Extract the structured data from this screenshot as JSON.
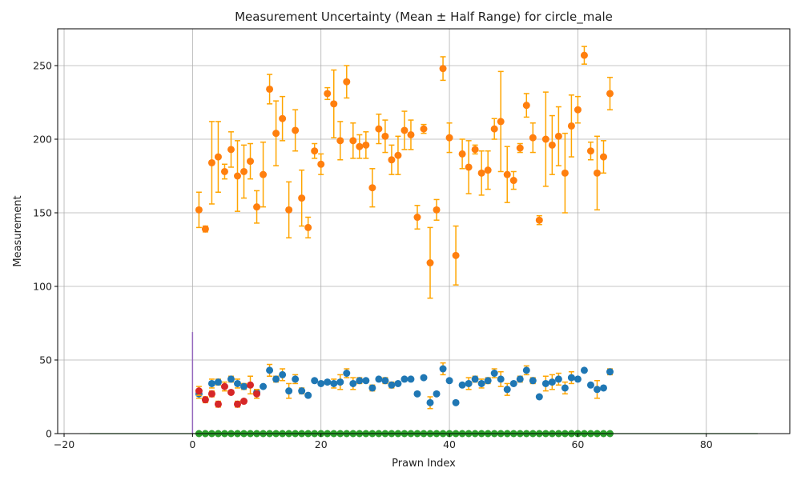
{
  "chart_data": {
    "type": "scatter",
    "title": "Measurement Uncertainty (Mean ± Half Range) for circle_male",
    "xlabel": "Prawn Index",
    "ylabel": "Measurement",
    "xlim": [
      -21,
      93
    ],
    "ylim": [
      0,
      275
    ],
    "xticks": [
      -20,
      0,
      20,
      40,
      60,
      80
    ],
    "yticks": [
      0,
      50,
      100,
      150,
      200,
      250
    ],
    "grid": true,
    "colors": {
      "upper": "#ff7f0e",
      "middle": "#1f77b4",
      "red": "#d62728",
      "bottom": "#2ca02c",
      "error_bar": "#ffa500",
      "vertical": "#9467bd"
    },
    "vertical_line": {
      "x": 0,
      "y_start": 0,
      "y_end": 69
    },
    "flat_lines": [
      {
        "x_start": -16,
        "x_end": 88,
        "y": 0
      }
    ],
    "series": [
      {
        "role": "upper",
        "points": [
          [
            1,
            152,
            12
          ],
          [
            2,
            139,
            2
          ],
          [
            3,
            184,
            28
          ],
          [
            4,
            188,
            24
          ],
          [
            5,
            178,
            5
          ],
          [
            6,
            193,
            12
          ],
          [
            7,
            175,
            24
          ],
          [
            8,
            178,
            18
          ],
          [
            9,
            185,
            12
          ],
          [
            10,
            154,
            11
          ],
          [
            11,
            176,
            22
          ],
          [
            12,
            234,
            10
          ],
          [
            13,
            204,
            22
          ],
          [
            14,
            214,
            15
          ],
          [
            15,
            152,
            19
          ],
          [
            16,
            206,
            14
          ],
          [
            17,
            160,
            19
          ],
          [
            18,
            140,
            7
          ],
          [
            19,
            192,
            5
          ],
          [
            20,
            183,
            7
          ],
          [
            21,
            231,
            4
          ],
          [
            22,
            224,
            23
          ],
          [
            23,
            199,
            13
          ],
          [
            24,
            239,
            11
          ],
          [
            25,
            199,
            12
          ],
          [
            26,
            195,
            8
          ],
          [
            27,
            196,
            9
          ],
          [
            28,
            167,
            13
          ],
          [
            29,
            207,
            10
          ],
          [
            30,
            202,
            11
          ],
          [
            31,
            186,
            10
          ],
          [
            32,
            189,
            13
          ],
          [
            33,
            206,
            13
          ],
          [
            34,
            203,
            10
          ],
          [
            35,
            147,
            8
          ],
          [
            36,
            207,
            3
          ],
          [
            37,
            116,
            24
          ],
          [
            38,
            152,
            7
          ],
          [
            39,
            248,
            8
          ],
          [
            40,
            201,
            10
          ],
          [
            41,
            121,
            20
          ],
          [
            42,
            190,
            10
          ],
          [
            43,
            181,
            18
          ],
          [
            44,
            193,
            3
          ],
          [
            45,
            177,
            15
          ],
          [
            46,
            179,
            13
          ],
          [
            47,
            207,
            7
          ],
          [
            48,
            212,
            34
          ],
          [
            49,
            176,
            19
          ],
          [
            50,
            172,
            6
          ],
          [
            51,
            194,
            3
          ],
          [
            52,
            223,
            8
          ],
          [
            53,
            201,
            10
          ],
          [
            54,
            145,
            3
          ],
          [
            55,
            200,
            32
          ],
          [
            56,
            196,
            20
          ],
          [
            57,
            202,
            20
          ],
          [
            58,
            177,
            27
          ],
          [
            59,
            209,
            21
          ],
          [
            60,
            220,
            9
          ],
          [
            61,
            257,
            6
          ],
          [
            62,
            192,
            6
          ],
          [
            63,
            177,
            25
          ],
          [
            64,
            188,
            11
          ],
          [
            65,
            231,
            11
          ]
        ]
      },
      {
        "role": "middle",
        "points": [
          [
            1,
            27,
            3
          ],
          [
            3,
            34,
            3
          ],
          [
            4,
            35,
            2
          ],
          [
            6,
            37,
            2
          ],
          [
            7,
            34,
            3
          ],
          [
            8,
            32,
            2
          ],
          [
            10,
            28,
            2
          ],
          [
            11,
            32,
            1
          ],
          [
            12,
            43,
            4
          ],
          [
            13,
            37,
            2
          ],
          [
            14,
            40,
            4
          ],
          [
            15,
            29,
            5
          ],
          [
            16,
            37,
            3
          ],
          [
            17,
            29,
            2
          ],
          [
            18,
            26,
            1
          ],
          [
            19,
            36,
            1
          ],
          [
            20,
            34,
            1
          ],
          [
            21,
            35,
            1
          ],
          [
            22,
            34,
            3
          ],
          [
            23,
            35,
            5
          ],
          [
            24,
            41,
            3
          ],
          [
            25,
            34,
            4
          ],
          [
            26,
            36,
            2
          ],
          [
            27,
            36,
            1
          ],
          [
            28,
            31,
            2
          ],
          [
            29,
            37,
            1
          ],
          [
            30,
            36,
            2
          ],
          [
            31,
            33,
            2
          ],
          [
            32,
            34,
            1
          ],
          [
            33,
            37,
            1
          ],
          [
            34,
            37,
            1
          ],
          [
            35,
            27,
            1
          ],
          [
            36,
            38,
            1
          ],
          [
            37,
            21,
            4
          ],
          [
            38,
            27,
            1
          ],
          [
            39,
            44,
            4
          ],
          [
            40,
            36,
            1
          ],
          [
            41,
            21,
            1
          ],
          [
            42,
            33,
            1
          ],
          [
            43,
            34,
            4
          ],
          [
            44,
            37,
            2
          ],
          [
            45,
            34,
            3
          ],
          [
            46,
            36,
            2
          ],
          [
            47,
            41,
            3
          ],
          [
            48,
            37,
            5
          ],
          [
            49,
            30,
            4
          ],
          [
            50,
            34,
            1
          ],
          [
            51,
            37,
            2
          ],
          [
            52,
            43,
            3
          ],
          [
            53,
            36,
            2
          ],
          [
            54,
            25,
            1
          ],
          [
            55,
            34,
            5
          ],
          [
            56,
            35,
            5
          ],
          [
            57,
            37,
            4
          ],
          [
            58,
            31,
            4
          ],
          [
            59,
            38,
            4
          ],
          [
            60,
            37,
            1
          ],
          [
            61,
            43,
            1
          ],
          [
            62,
            33,
            1
          ],
          [
            63,
            30,
            6
          ],
          [
            64,
            31,
            1
          ],
          [
            65,
            42,
            2
          ]
        ]
      },
      {
        "role": "red",
        "points": [
          [
            1,
            29,
            3
          ],
          [
            2,
            23,
            2
          ],
          [
            3,
            27,
            2
          ],
          [
            4,
            20,
            2
          ],
          [
            5,
            32,
            3
          ],
          [
            6,
            28,
            1
          ],
          [
            7,
            20,
            2
          ],
          [
            8,
            22,
            1
          ],
          [
            9,
            33,
            6
          ],
          [
            10,
            27,
            3
          ]
        ]
      },
      {
        "role": "bottom",
        "points": [
          [
            1,
            0
          ],
          [
            2,
            0
          ],
          [
            3,
            0
          ],
          [
            4,
            0
          ],
          [
            5,
            0
          ],
          [
            6,
            0
          ],
          [
            7,
            0
          ],
          [
            8,
            0
          ],
          [
            9,
            0
          ],
          [
            10,
            0
          ],
          [
            11,
            0
          ],
          [
            12,
            0
          ],
          [
            13,
            0
          ],
          [
            14,
            0
          ],
          [
            15,
            0
          ],
          [
            16,
            0
          ],
          [
            17,
            0
          ],
          [
            18,
            0
          ],
          [
            19,
            0
          ],
          [
            20,
            0
          ],
          [
            21,
            0
          ],
          [
            22,
            0
          ],
          [
            23,
            0
          ],
          [
            24,
            0
          ],
          [
            25,
            0
          ],
          [
            26,
            0
          ],
          [
            27,
            0
          ],
          [
            28,
            0
          ],
          [
            29,
            0
          ],
          [
            30,
            0
          ],
          [
            31,
            0
          ],
          [
            32,
            0
          ],
          [
            33,
            0
          ],
          [
            34,
            0
          ],
          [
            35,
            0
          ],
          [
            36,
            0
          ],
          [
            37,
            0
          ],
          [
            38,
            0
          ],
          [
            39,
            0
          ],
          [
            40,
            0
          ],
          [
            41,
            0
          ],
          [
            42,
            0
          ],
          [
            43,
            0
          ],
          [
            44,
            0
          ],
          [
            45,
            0
          ],
          [
            46,
            0
          ],
          [
            47,
            0
          ],
          [
            48,
            0
          ],
          [
            49,
            0
          ],
          [
            50,
            0
          ],
          [
            51,
            0
          ],
          [
            52,
            0
          ],
          [
            53,
            0
          ],
          [
            54,
            0
          ],
          [
            55,
            0
          ],
          [
            56,
            0
          ],
          [
            57,
            0
          ],
          [
            58,
            0
          ],
          [
            59,
            0
          ],
          [
            60,
            0
          ],
          [
            61,
            0
          ],
          [
            62,
            0
          ],
          [
            63,
            0
          ],
          [
            64,
            0
          ],
          [
            65,
            0
          ]
        ]
      }
    ]
  }
}
